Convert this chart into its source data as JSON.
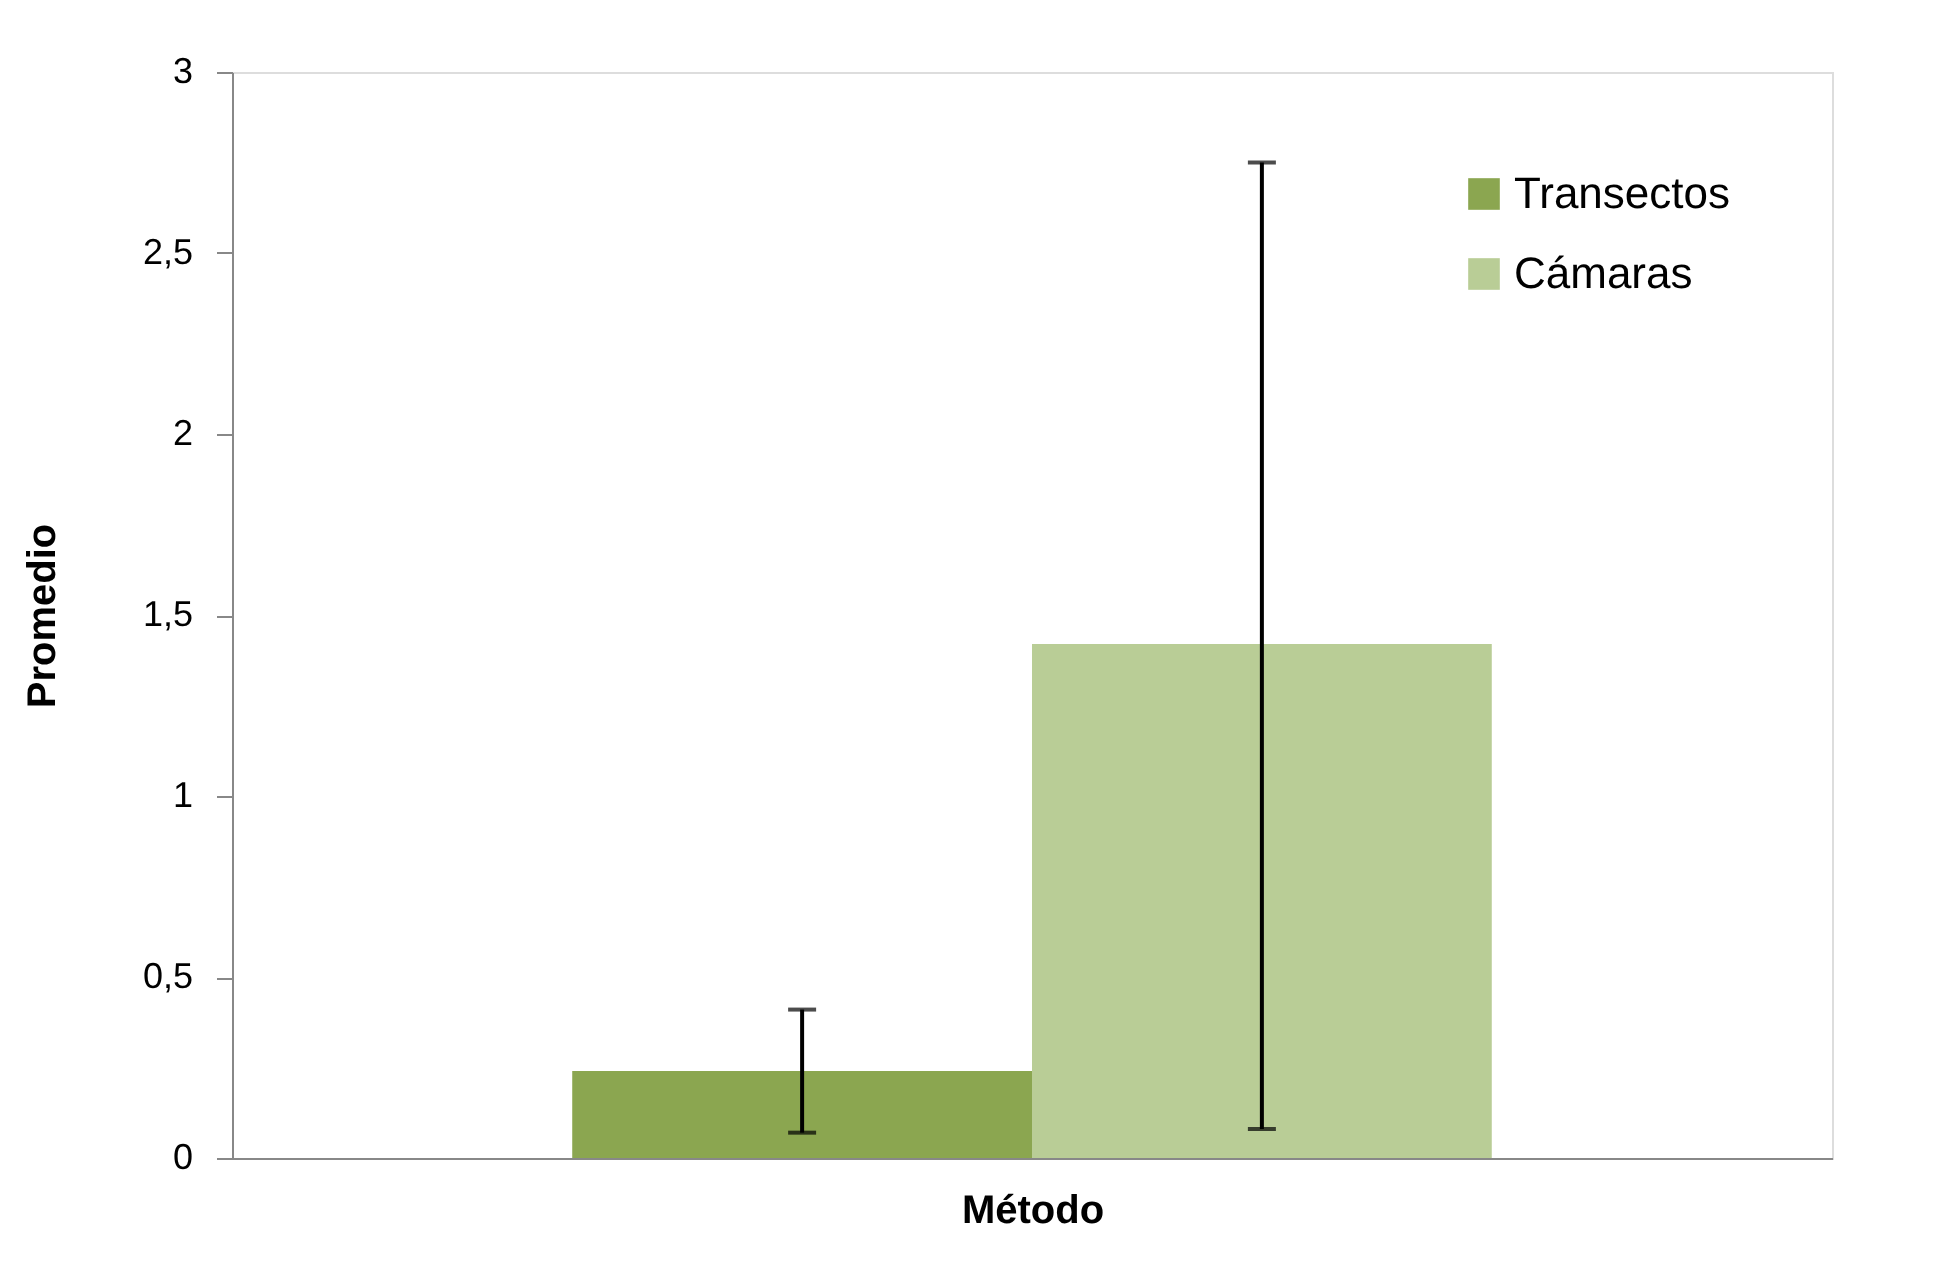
{
  "chart_data": {
    "type": "bar",
    "xlabel": "Método",
    "ylabel": "Promedio",
    "categories": [
      null
    ],
    "series": [
      {
        "name": "Transectos",
        "color": "#8ba650",
        "values": [
          0.24
        ],
        "errors": [
          [
            0.07,
            0.41
          ]
        ]
      },
      {
        "name": "Cámaras",
        "color": "#b9cd96",
        "values": [
          1.42
        ],
        "errors": [
          [
            0.08,
            2.75
          ]
        ]
      }
    ],
    "ylim": [
      0,
      3
    ],
    "yticks": [
      0,
      {
        "value": 0.5,
        "label": "0,5"
      },
      1,
      {
        "value": 1.5,
        "label": "1,5"
      },
      2,
      {
        "value": 2.5,
        "label": "2,5"
      },
      3
    ],
    "grid": false,
    "legend": "top right"
  }
}
